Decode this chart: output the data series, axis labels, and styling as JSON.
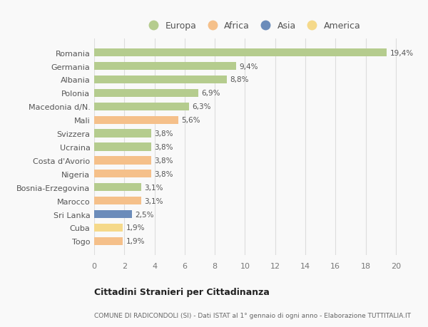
{
  "countries": [
    "Romania",
    "Germania",
    "Albania",
    "Polonia",
    "Macedonia d/N.",
    "Mali",
    "Svizzera",
    "Ucraina",
    "Costa d'Avorio",
    "Nigeria",
    "Bosnia-Erzegovina",
    "Marocco",
    "Sri Lanka",
    "Cuba",
    "Togo"
  ],
  "values": [
    19.4,
    9.4,
    8.8,
    6.9,
    6.3,
    5.6,
    3.8,
    3.8,
    3.8,
    3.8,
    3.1,
    3.1,
    2.5,
    1.9,
    1.9
  ],
  "labels": [
    "19,4%",
    "9,4%",
    "8,8%",
    "6,9%",
    "6,3%",
    "5,6%",
    "3,8%",
    "3,8%",
    "3,8%",
    "3,8%",
    "3,1%",
    "3,1%",
    "2,5%",
    "1,9%",
    "1,9%"
  ],
  "continents": [
    "Europa",
    "Europa",
    "Europa",
    "Europa",
    "Europa",
    "Africa",
    "Europa",
    "Europa",
    "Africa",
    "Africa",
    "Europa",
    "Africa",
    "Asia",
    "America",
    "Africa"
  ],
  "colors": {
    "Europa": "#b5cc8e",
    "Africa": "#f5c08a",
    "Asia": "#6b8cba",
    "America": "#f5d98a"
  },
  "legend_order": [
    "Europa",
    "Africa",
    "Asia",
    "America"
  ],
  "xlim": [
    0,
    21
  ],
  "xticks": [
    0,
    2,
    4,
    6,
    8,
    10,
    12,
    14,
    16,
    18,
    20
  ],
  "title": "Cittadini Stranieri per Cittadinanza",
  "subtitle": "COMUNE DI RADICONDOLI (SI) - Dati ISTAT al 1° gennaio di ogni anno - Elaborazione TUTTITALIA.IT",
  "bg_color": "#f9f9f9",
  "bar_height": 0.6,
  "grid_color": "#dddddd"
}
